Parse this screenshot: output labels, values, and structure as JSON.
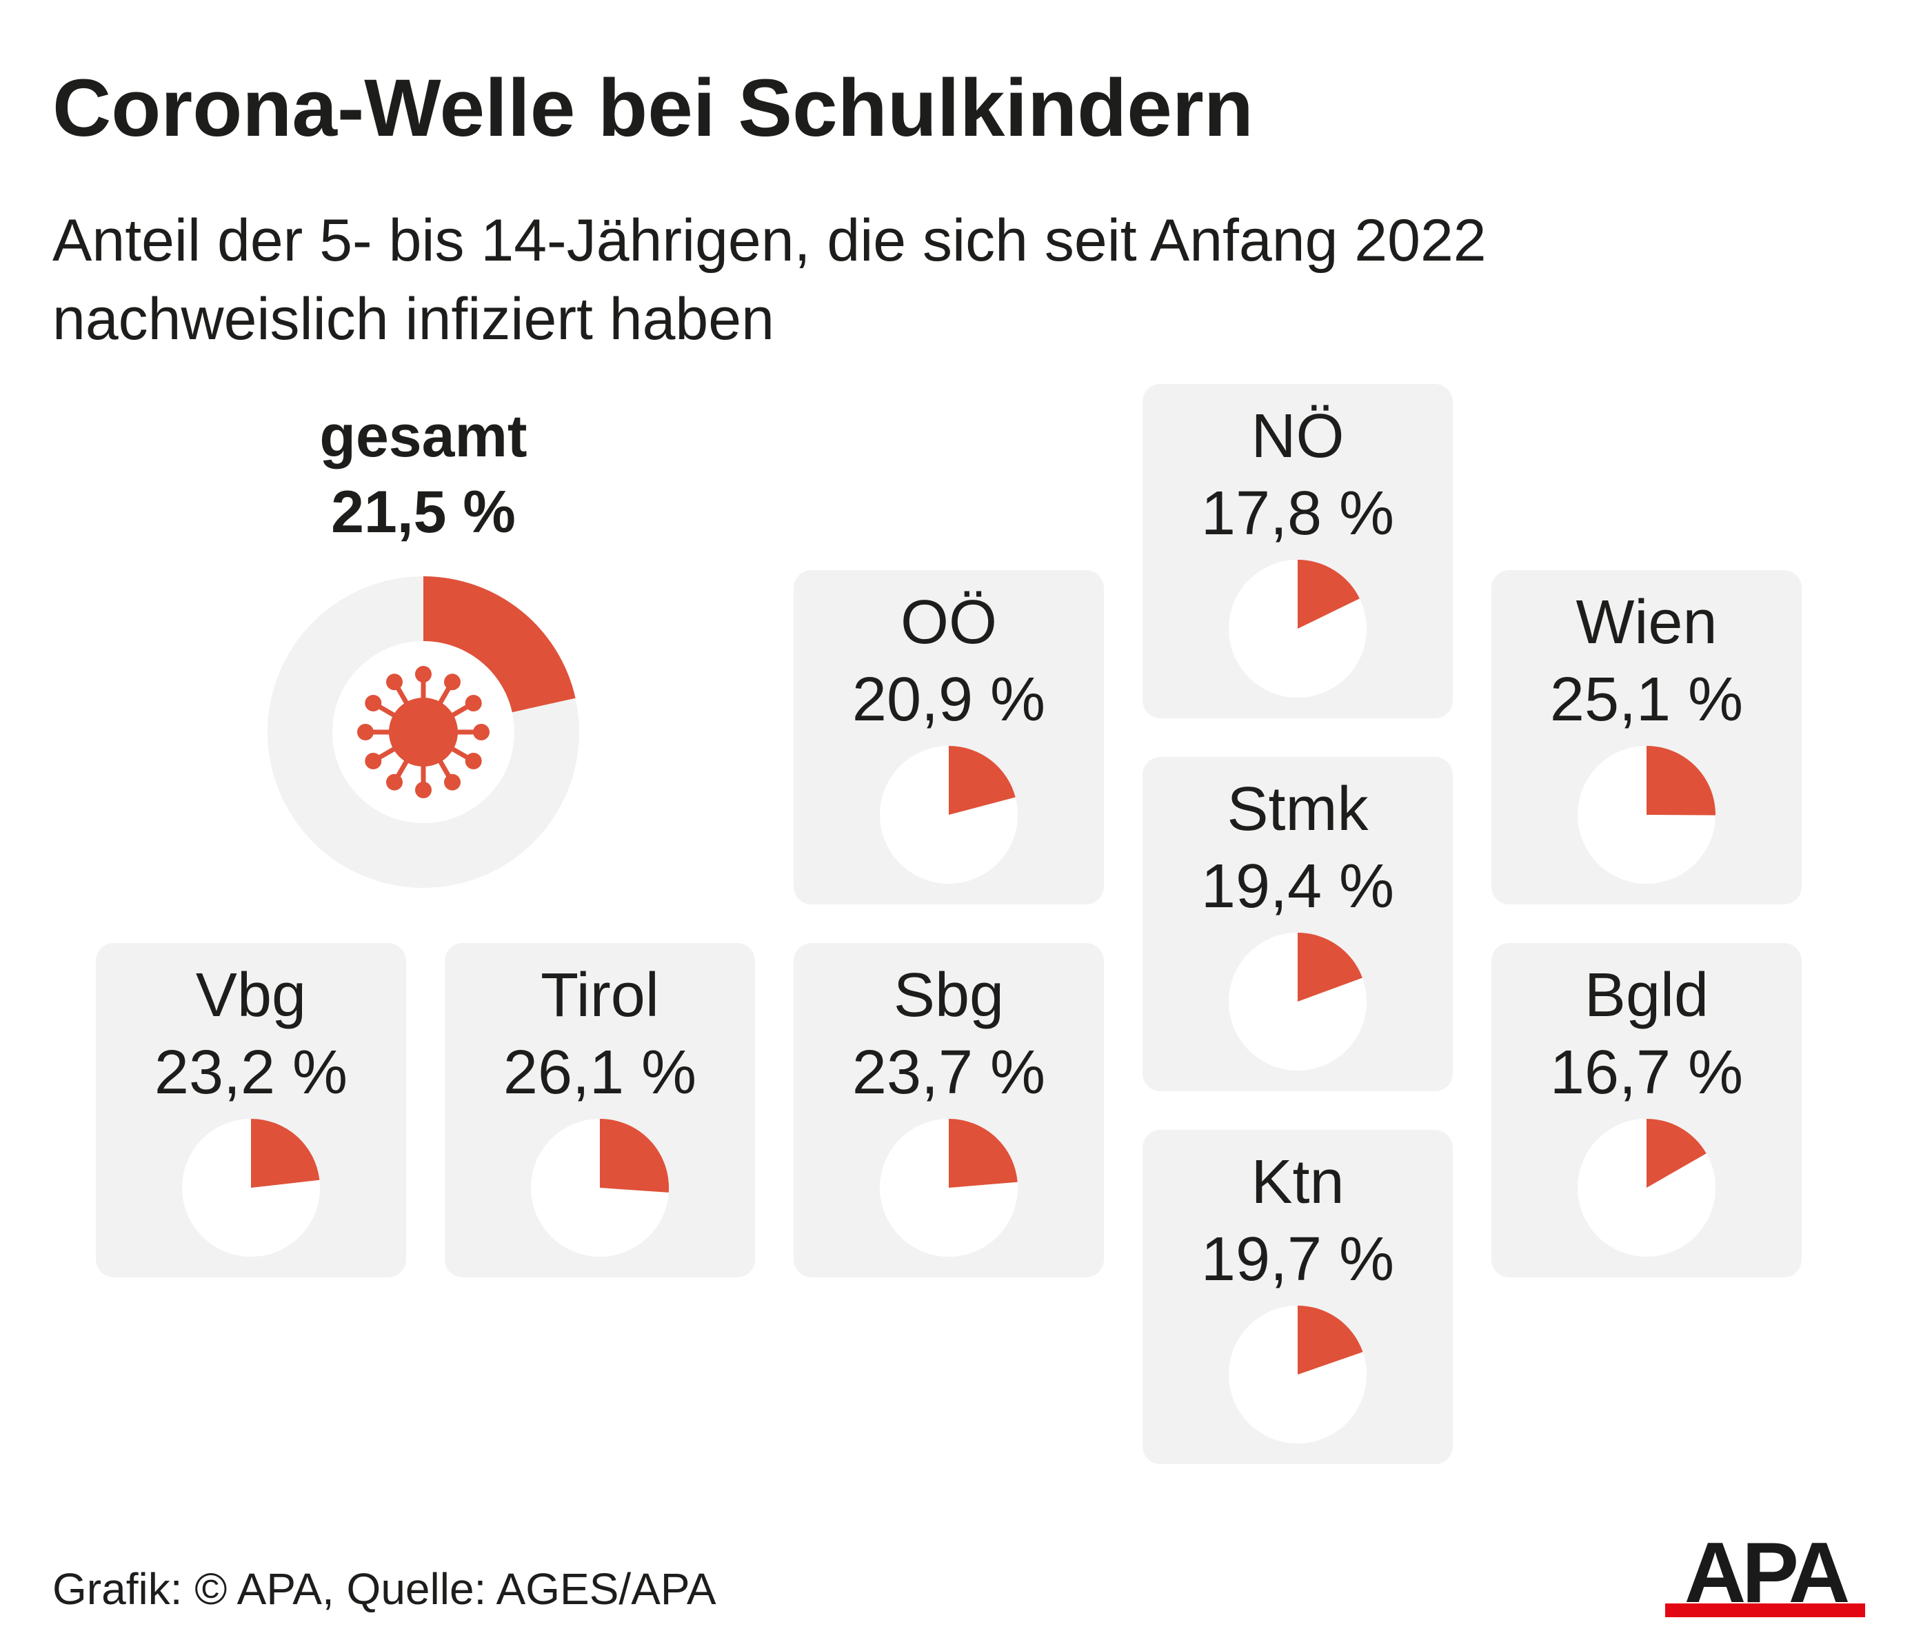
{
  "title": "Corona-Welle bei Schulkindern",
  "subtitle_lines": [
    "Anteil der 5- bis 14-Jährigen, die sich seit Anfang 2022",
    "nachweislich infiziert haben"
  ],
  "source": "Grafik: © APA, Quelle: AGES/APA",
  "logo_text": "APA",
  "colors": {
    "accent": "#df5139",
    "tile": "#f2f2f2",
    "ring": "#f2f2f2",
    "logo_bar": "#e30613"
  },
  "total": {
    "name": "gesamt",
    "value": 21.5,
    "value_label": "21,5 %",
    "icon": "virus-icon"
  },
  "chart_data": {
    "type": "pie",
    "unit": "%",
    "categories": [
      "gesamt",
      "Vbg",
      "Tirol",
      "Sbg",
      "OÖ",
      "NÖ",
      "Stmk",
      "Ktn",
      "Wien",
      "Bgld"
    ],
    "values": [
      21.5,
      23.2,
      26.1,
      23.7,
      20.9,
      17.8,
      19.4,
      19.7,
      25.1,
      16.7
    ],
    "value_labels": [
      "21,5 %",
      "23,2 %",
      "26,1 %",
      "23,7 %",
      "20,9 %",
      "17,8 %",
      "19,4 %",
      "19,7 %",
      "25,1 %",
      "16,7 %"
    ]
  },
  "regions": [
    {
      "id": "oo",
      "name": "OÖ",
      "value": 20.9,
      "value_label": "20,9 %"
    },
    {
      "id": "noe",
      "name": "NÖ",
      "value": 17.8,
      "value_label": "17,8 %"
    },
    {
      "id": "wien",
      "name": "Wien",
      "value": 25.1,
      "value_label": "25,1 %"
    },
    {
      "id": "stmk",
      "name": "Stmk",
      "value": 19.4,
      "value_label": "19,4 %"
    },
    {
      "id": "vbg",
      "name": "Vbg",
      "value": 23.2,
      "value_label": "23,2 %"
    },
    {
      "id": "tirol",
      "name": "Tirol",
      "value": 26.1,
      "value_label": "26,1 %"
    },
    {
      "id": "sbg",
      "name": "Sbg",
      "value": 23.7,
      "value_label": "23,7 %"
    },
    {
      "id": "bgld",
      "name": "Bgld",
      "value": 16.7,
      "value_label": "16,7 %"
    },
    {
      "id": "ktn",
      "name": "Ktn",
      "value": 19.7,
      "value_label": "19,7 %"
    }
  ]
}
